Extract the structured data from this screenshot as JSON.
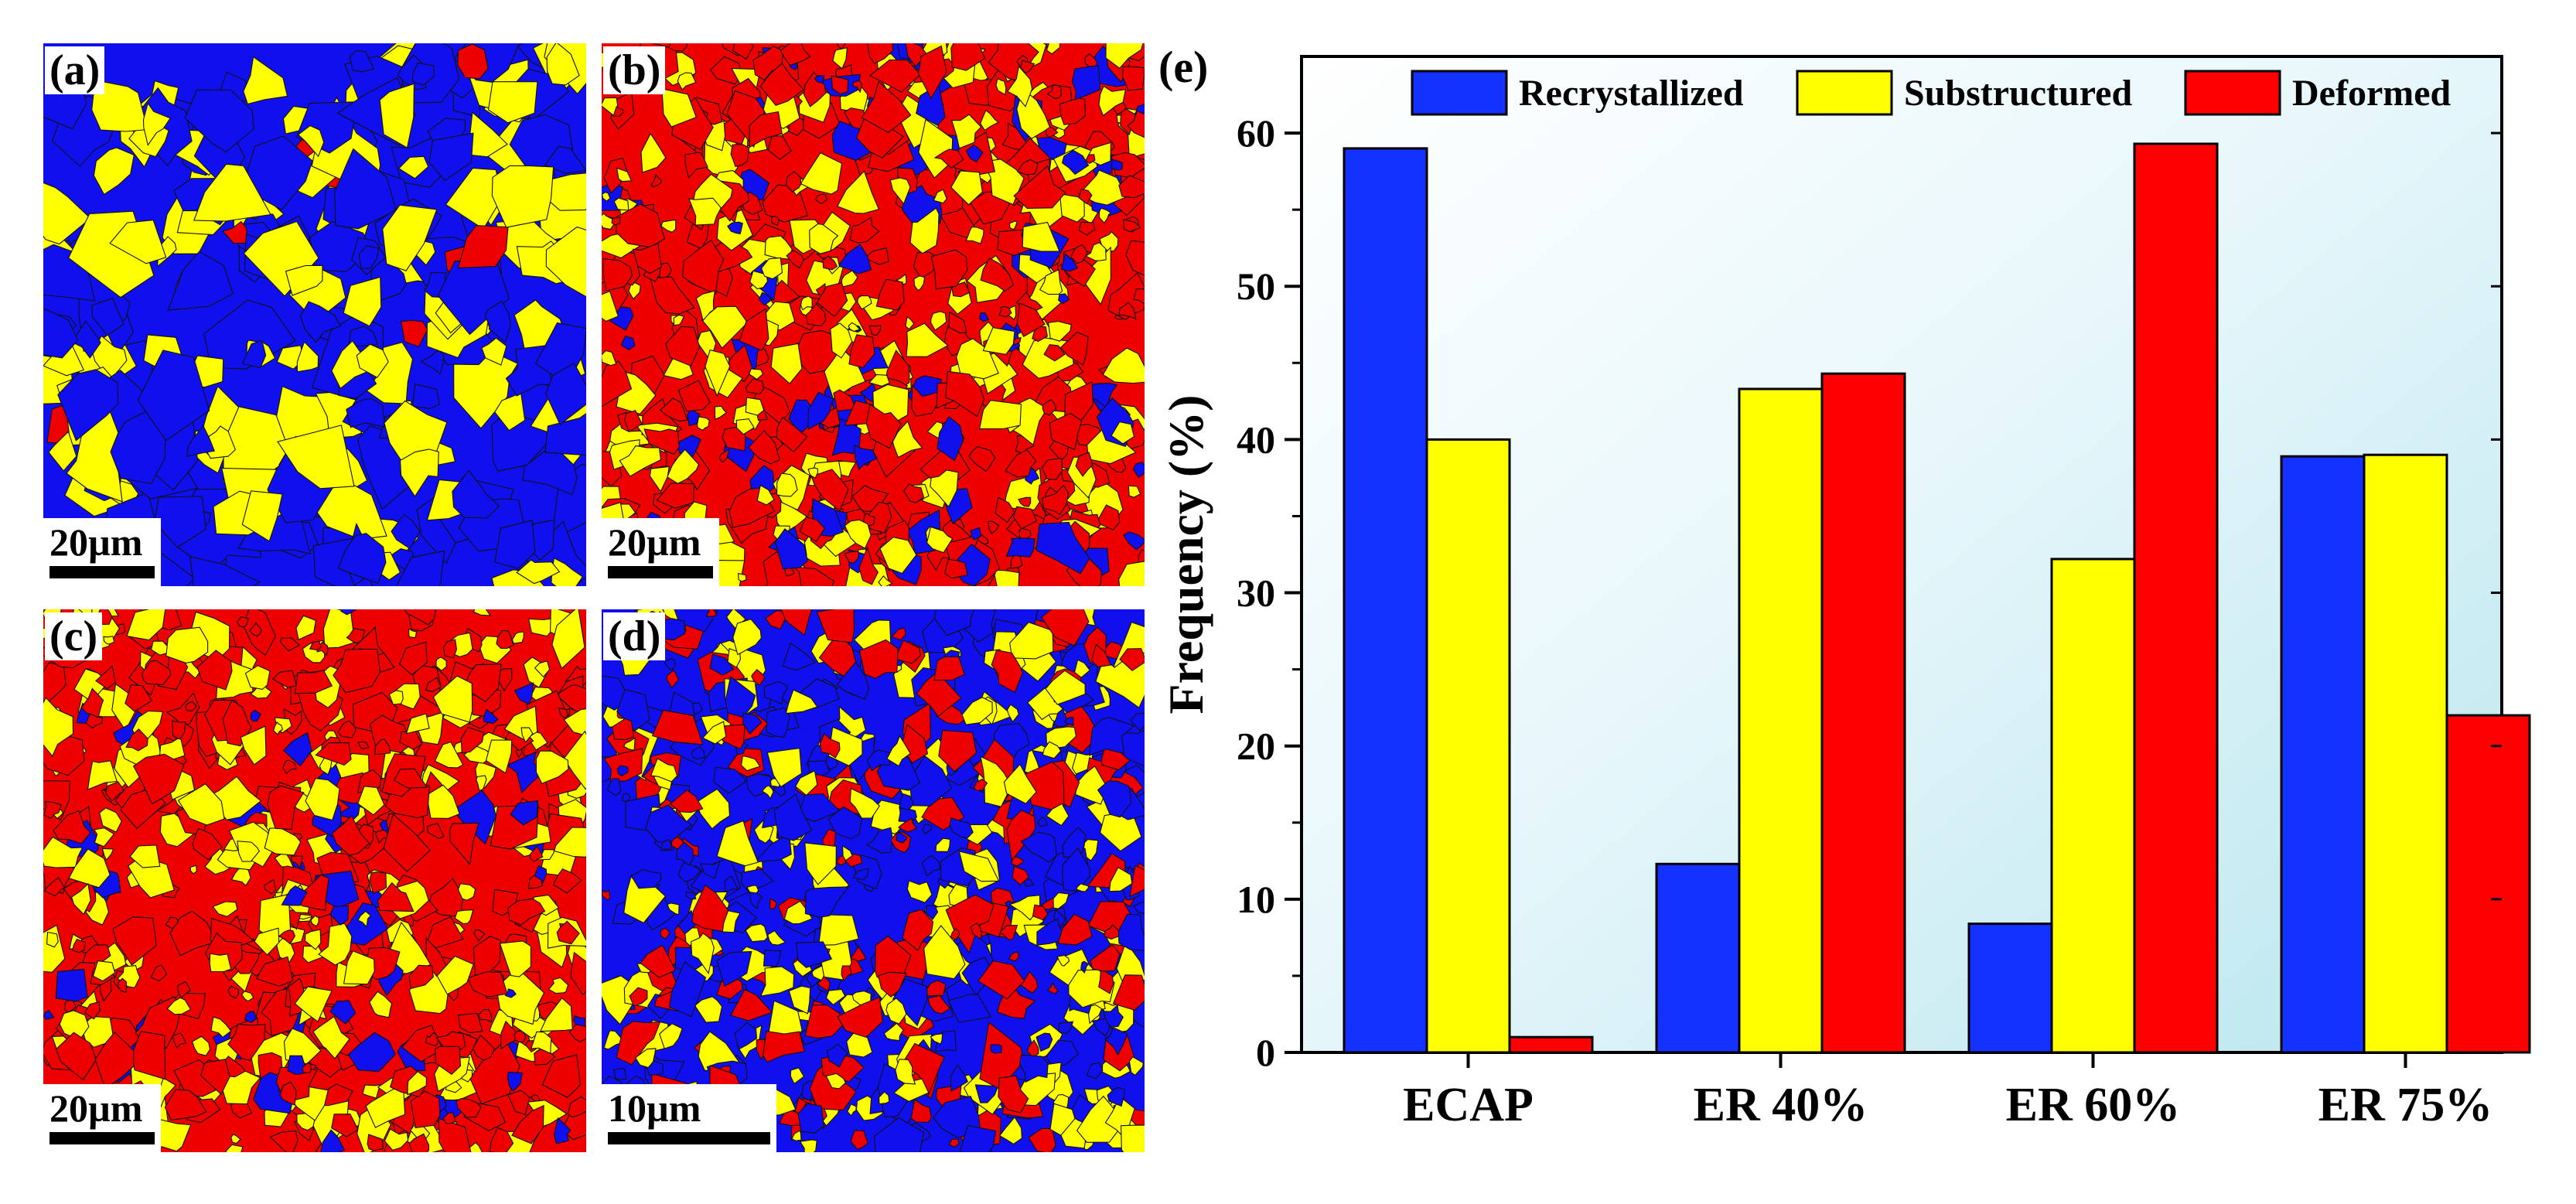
{
  "maps": [
    {
      "label": "(a)",
      "scale": "20µm",
      "colors": [
        "#1010ee",
        "#ffff00",
        "#ee0000"
      ],
      "weights": [
        0.5,
        0.47,
        0.03
      ]
    },
    {
      "label": "(b)",
      "scale": "20µm",
      "colors": [
        "#ee0000",
        "#ffff00",
        "#1010ee"
      ],
      "weights": [
        0.5,
        0.36,
        0.14
      ]
    },
    {
      "label": "(c)",
      "scale": "20µm",
      "colors": [
        "#ee0000",
        "#ffff00",
        "#1010ee"
      ],
      "weights": [
        0.52,
        0.4,
        0.08
      ]
    },
    {
      "label": "(d)",
      "scale": "10µm",
      "colors": [
        "#1010ee",
        "#ffff00",
        "#ee0000"
      ],
      "weights": [
        0.38,
        0.38,
        0.24
      ]
    }
  ],
  "chart_data": {
    "type": "bar",
    "panel_label": "(e)",
    "categories": [
      "ECAP",
      "ER 40%",
      "ER 60%",
      "ER 75%"
    ],
    "series": [
      {
        "name": "Recrystallized",
        "color": "#1432ff",
        "values": [
          59,
          12.3,
          8.4,
          38.9
        ]
      },
      {
        "name": "Substructured",
        "color": "#ffff00",
        "values": [
          40,
          43.3,
          32.2,
          39
        ]
      },
      {
        "name": "Deformed",
        "color": "#ff0000",
        "values": [
          1,
          44.3,
          59.3,
          22
        ]
      }
    ],
    "ylabel": "Frequency (%)",
    "xlabel": "",
    "ylim": [
      0,
      65
    ],
    "yticks": [
      0,
      10,
      20,
      30,
      40,
      50,
      60
    ],
    "legend_position": "top",
    "grid": false
  }
}
